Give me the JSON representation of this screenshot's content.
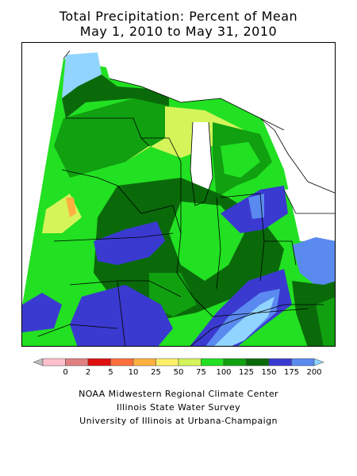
{
  "title": {
    "line1": "Total Precipitation: Percent of Mean",
    "line2": "May 1, 2010 to May 31, 2010"
  },
  "legend": {
    "ticks": [
      "0",
      "2",
      "5",
      "10",
      "25",
      "50",
      "75",
      "100",
      "125",
      "150",
      "175",
      "200"
    ],
    "colors": [
      "#bdbdbd",
      "#ffc0cb",
      "#e08080",
      "#e01010",
      "#ff6f3c",
      "#ffb040",
      "#fff06a",
      "#d4f45a",
      "#22e022",
      "#10a010",
      "#0a6a0a",
      "#3a3ad0",
      "#5a8af0",
      "#90d4ff"
    ]
  },
  "credits": {
    "line1": "NOAA Midwestern Regional Climate Center",
    "line2": "Illinois State Water Survey",
    "line3": "University of Illinois at Urbana-Champaign"
  },
  "map": {
    "dominant_category_colors": {
      "above_200": "#90d4ff",
      "175_200": "#5a8af0",
      "150_175": "#3a3ad0",
      "125_150": "#0a6a0a",
      "100_125": "#10a010",
      "75_100": "#22e022",
      "50_75": "#d4f45a",
      "lake": "#ffffff"
    }
  }
}
